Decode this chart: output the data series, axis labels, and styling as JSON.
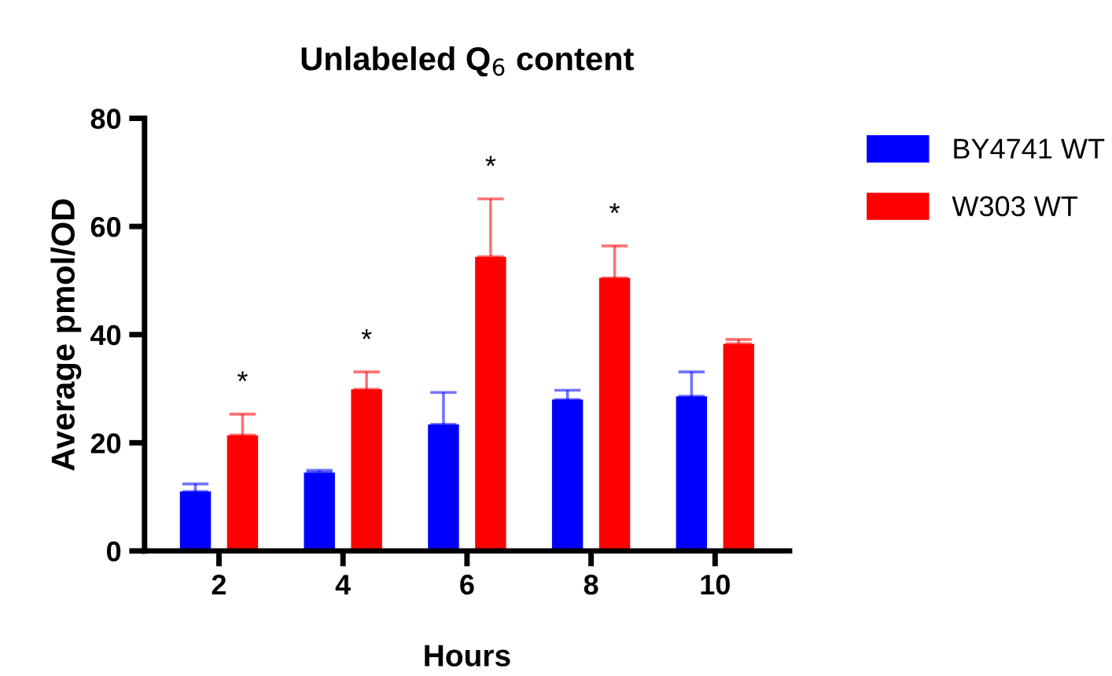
{
  "chart_data": {
    "type": "bar",
    "title": "Unlabeled Q$_{6}$ content",
    "xlabel": "Hours",
    "ylabel": "Average pmol/OD",
    "categories": [
      "2",
      "4",
      "6",
      "8",
      "10"
    ],
    "series": [
      {
        "name": "BY4741 WT",
        "color": "#0000ff",
        "values": [
          11.0,
          14.5,
          23.4,
          28.0,
          28.6
        ],
        "errors": [
          [
            11.0,
            12.4
          ],
          [
            14.5,
            14.9
          ],
          [
            23.4,
            29.3
          ],
          [
            28.0,
            29.7
          ],
          [
            28.6,
            33.1
          ]
        ]
      },
      {
        "name": "W303 WT",
        "color": "#ff0000",
        "values": [
          21.4,
          29.9,
          54.4,
          50.5,
          38.3
        ],
        "errors": [
          [
            21.4,
            25.3
          ],
          [
            29.9,
            33.1
          ],
          [
            54.4,
            65.1
          ],
          [
            50.5,
            56.4
          ],
          [
            38.3,
            39.1
          ]
        ]
      }
    ],
    "ylim": [
      0,
      80
    ],
    "yticks": [
      0,
      20,
      40,
      60,
      80
    ],
    "grid": false,
    "legend": "top right",
    "annotations": [
      "*",
      "*",
      "*",
      "*"
    ]
  }
}
